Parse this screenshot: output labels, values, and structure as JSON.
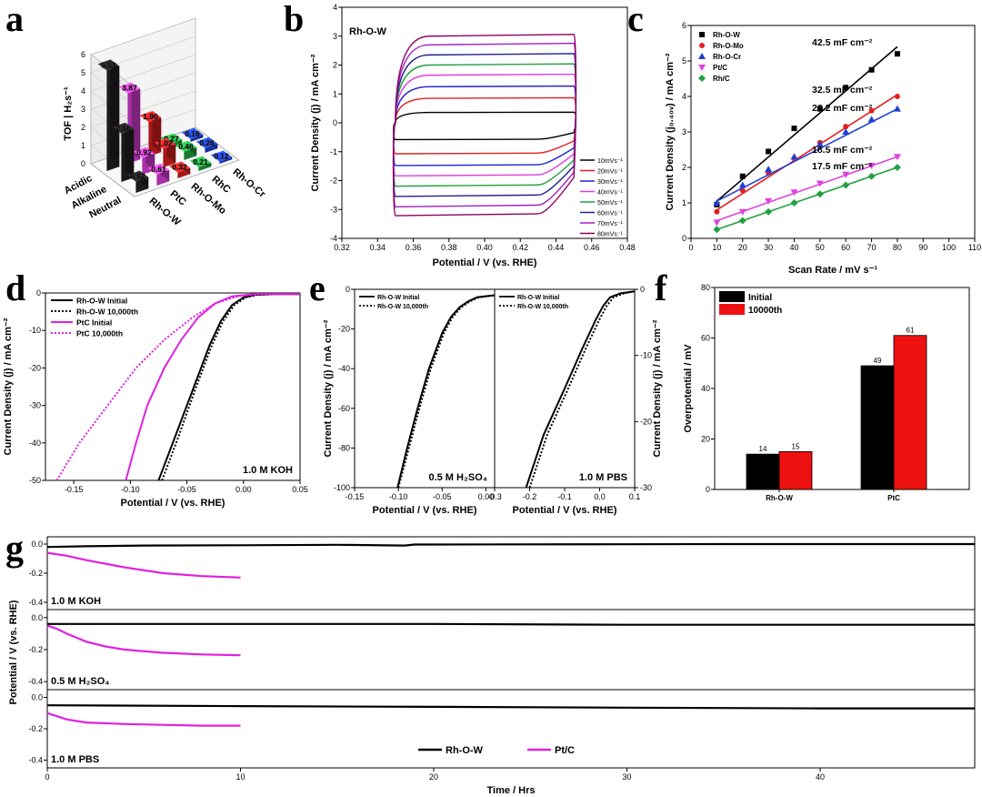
{
  "panel_labels": {
    "a": "a",
    "b": "b",
    "c": "c",
    "d": "d",
    "e": "e",
    "f": "f",
    "g": "g"
  },
  "chart_data": [
    {
      "id": "a",
      "type": "bar",
      "ylabel": "TOF | H₂s⁻¹",
      "yticks": [
        "0",
        "1",
        "2",
        "3",
        "4",
        "5",
        "6"
      ],
      "rows": [
        "Acidic",
        "Alkaline",
        "Neutral"
      ],
      "catalysts": [
        "Rh-O-W",
        "PtC",
        "Rh-O-Mo",
        "RhC",
        "Rh-O-Cr"
      ],
      "colors": {
        "Rh-O-W": "#222222",
        "PtC": "#e040e0",
        "Rh-O-Mo": "#e02020",
        "RhC": "#20a040",
        "Rh-O-Cr": "#2040d0"
      },
      "bars": [
        {
          "row": "Acidic",
          "catalyst": "Rh-O-Cr",
          "value": 0.16,
          "label": "0.16"
        },
        {
          "row": "Acidic",
          "catalyst": "RhC",
          "value": 0.27,
          "label": "0.27"
        },
        {
          "row": "Acidic",
          "catalyst": "Rh-O-Mo",
          "value": 1.9,
          "label": "1.90"
        },
        {
          "row": "Acidic",
          "catalyst": "PtC",
          "value": 3.87,
          "label": "3.87"
        },
        {
          "row": "Acidic",
          "catalyst": "Rh-O-W",
          "value": 5.53,
          "label": "5.53"
        },
        {
          "row": "Alkaline",
          "catalyst": "Rh-O-Cr",
          "value": 0.26,
          "label": "0.26"
        },
        {
          "row": "Alkaline",
          "catalyst": "RhC",
          "value": 0.46,
          "label": "0.46"
        },
        {
          "row": "Alkaline",
          "catalyst": "Rh-O-Mo",
          "value": 1.02,
          "label": "1.02"
        },
        {
          "row": "Alkaline",
          "catalyst": "PtC",
          "value": 0.92,
          "label": "0.92"
        },
        {
          "row": "Alkaline",
          "catalyst": "Rh-O-W",
          "value": 2.66,
          "label": "2.66"
        },
        {
          "row": "Neutral",
          "catalyst": "Rh-O-Cr",
          "value": 0.12,
          "label": "0.12"
        },
        {
          "row": "Neutral",
          "catalyst": "RhC",
          "value": 0.21,
          "label": "0.21"
        },
        {
          "row": "Neutral",
          "catalyst": "Rh-O-Mo",
          "value": 0.32,
          "label": "0.32"
        },
        {
          "row": "Neutral",
          "catalyst": "PtC",
          "value": 0.61,
          "label": "0.61"
        },
        {
          "row": "Neutral",
          "catalyst": "Rh-O-W",
          "value": 0.62,
          "label": "0.62"
        }
      ]
    },
    {
      "id": "b",
      "type": "line",
      "inset_title": "Rh-O-W",
      "xlabel": "Potential / V (vs. RHE)",
      "ylabel": "Current Density (j) / mA cm⁻²",
      "xlim": [
        0.32,
        0.48
      ],
      "ylim": [
        -4,
        4
      ],
      "xticks": [
        "0.32",
        "0.34",
        "0.36",
        "0.38",
        "0.40",
        "0.42",
        "0.44",
        "0.46",
        "0.48"
      ],
      "yticks": [
        "-4",
        "-3",
        "-2",
        "-1",
        "0",
        "1",
        "2",
        "3",
        "4"
      ],
      "x_range": [
        0.35,
        0.45
      ],
      "series": [
        {
          "name": "10mVs⁻¹",
          "color": "#000000",
          "upper": 0.36,
          "lower": -0.57
        },
        {
          "name": "20mVs⁻¹",
          "color": "#e02020",
          "upper": 0.85,
          "lower": -1.05
        },
        {
          "name": "30mVs⁻¹",
          "color": "#2020d0",
          "upper": 1.25,
          "lower": -1.45
        },
        {
          "name": "40mVs⁻¹",
          "color": "#e040e0",
          "upper": 1.65,
          "lower": -1.8
        },
        {
          "name": "50mVs⁻¹",
          "color": "#20a040",
          "upper": 2.0,
          "lower": -2.15
        },
        {
          "name": "60mVs⁻¹",
          "color": "#202090",
          "upper": 2.35,
          "lower": -2.5
        },
        {
          "name": "70mVs⁻¹",
          "color": "#a020c0",
          "upper": 2.7,
          "lower": -2.85
        },
        {
          "name": "80mVs⁻¹",
          "color": "#900060",
          "upper": 3.0,
          "lower": -3.15
        }
      ]
    },
    {
      "id": "c",
      "type": "scatter",
      "xlabel": "Scan Rate / mV s⁻¹",
      "ylabel": "Current Density (j₀.₄₀ᵥ) / mA cm⁻²",
      "xlim": [
        0,
        110
      ],
      "ylim": [
        0,
        6
      ],
      "xticks": [
        "0",
        "10",
        "20",
        "30",
        "40",
        "50",
        "60",
        "70",
        "80",
        "90",
        "100",
        "110"
      ],
      "yticks": [
        "0",
        "1",
        "2",
        "3",
        "4",
        "5",
        "6"
      ],
      "x": [
        10,
        20,
        30,
        40,
        50,
        60,
        70,
        80
      ],
      "series": [
        {
          "name": "Rh-O-W",
          "color": "#000000",
          "marker": "square",
          "values": [
            0.95,
            1.75,
            2.45,
            3.1,
            3.65,
            4.25,
            4.75,
            5.2
          ],
          "fit": [
            1.05,
            5.4
          ],
          "annotation": "42.5 mF cm⁻²"
        },
        {
          "name": "Rh-O-Mo",
          "color": "#e02020",
          "marker": "circle",
          "values": [
            0.75,
            1.35,
            1.85,
            2.25,
            2.7,
            3.15,
            3.6,
            4.0
          ],
          "fit": [
            0.8,
            4.05
          ],
          "annotation": "32.5 mF cm⁻²"
        },
        {
          "name": "Rh-O-Cr",
          "color": "#2040d0",
          "marker": "triangle-up",
          "values": [
            1.0,
            1.5,
            1.95,
            2.3,
            2.65,
            3.0,
            3.35,
            3.65
          ],
          "fit": [
            1.05,
            3.65
          ],
          "annotation": "26.2 mF cm⁻²"
        },
        {
          "name": "Pt/C",
          "color": "#e040e0",
          "marker": "triangle-down",
          "values": [
            0.45,
            0.75,
            1.05,
            1.3,
            1.55,
            1.8,
            2.05,
            2.3
          ],
          "fit": [
            0.5,
            2.3
          ],
          "annotation": "18.5 mF cm⁻²"
        },
        {
          "name": "Rh/C",
          "color": "#20a040",
          "marker": "diamond",
          "values": [
            0.25,
            0.5,
            0.75,
            1.0,
            1.25,
            1.5,
            1.75,
            2.0
          ],
          "fit": [
            0.25,
            2.0
          ],
          "annotation": "17.5 mF cm⁻²"
        }
      ]
    },
    {
      "id": "d",
      "type": "line",
      "xlabel": "Potential / V (vs. RHE)",
      "ylabel": "Current Density (j) / mA cm⁻²",
      "annotation": "1.0 M KOH",
      "xlim": [
        -0.175,
        0.05
      ],
      "ylim": [
        -50,
        0
      ],
      "xticks": [
        "-0.15",
        "-0.10",
        "-0.05",
        "0.00",
        "0.05"
      ],
      "ytick_values": [
        0,
        -10,
        -20,
        -30,
        -40,
        -50
      ],
      "yticks": [
        "0",
        "-10",
        "-20",
        "-30",
        "-40",
        "-50"
      ],
      "series": [
        {
          "name": "Rh-O-W Initial",
          "color": "#000000",
          "dash": "none",
          "x": [
            -0.075,
            -0.06,
            -0.045,
            -0.03,
            -0.02,
            -0.01,
            0.0,
            0.01,
            0.03,
            0.05
          ],
          "y": [
            -50,
            -38,
            -26,
            -14,
            -7.5,
            -3.2,
            -1.2,
            -0.5,
            -0.3,
            -0.3
          ]
        },
        {
          "name": "Rh-O-W 10,000th",
          "color": "#000000",
          "dash": "2,2",
          "x": [
            -0.072,
            -0.057,
            -0.043,
            -0.028,
            -0.018,
            -0.008,
            0.002,
            0.012,
            0.03,
            0.05
          ],
          "y": [
            -50,
            -38,
            -26,
            -14,
            -7.5,
            -3.2,
            -1.2,
            -0.5,
            -0.3,
            -0.3
          ]
        },
        {
          "name": "PtC Initial",
          "color": "#e020e0",
          "dash": "none",
          "x": [
            -0.104,
            -0.095,
            -0.085,
            -0.07,
            -0.055,
            -0.04,
            -0.025,
            -0.01,
            0.01,
            0.05
          ],
          "y": [
            -50,
            -40,
            -30,
            -20,
            -12.5,
            -6.5,
            -2.8,
            -0.9,
            -0.3,
            -0.3
          ]
        },
        {
          "name": "PtC 10,000th",
          "color": "#e020e0",
          "dash": "2,2",
          "x": [
            -0.165,
            -0.145,
            -0.12,
            -0.095,
            -0.07,
            -0.045,
            -0.025,
            -0.005,
            0.015,
            0.05
          ],
          "y": [
            -50,
            -40,
            -30,
            -20,
            -12.5,
            -6.5,
            -2.8,
            -0.9,
            -0.3,
            -0.3
          ]
        }
      ]
    },
    {
      "id": "e",
      "type": "line",
      "ylabel": "Current Density (j) / mA cm⁻²",
      "subplots": [
        {
          "xlabel": "Potential / V (vs. RHE)",
          "annotation": "0.5 M H₂SO₄",
          "xlim": [
            -0.15,
            0.01
          ],
          "ylim": [
            -100,
            0
          ],
          "xticks": [
            "-0.15",
            "-0.10",
            "-0.05",
            "0.00"
          ],
          "ytick_values": [
            0,
            -20,
            -40,
            -60,
            -80,
            -100
          ],
          "yticks": [
            "0",
            "-20",
            "-40",
            "-60",
            "-80",
            "-100"
          ],
          "legend": [
            "Rh-O-W Initial",
            "Rh-O-W 10,000th"
          ],
          "series": [
            {
              "name": "Rh-O-W Initial",
              "color": "#000000",
              "dash": "none",
              "x": [
                -0.101,
                -0.09,
                -0.078,
                -0.065,
                -0.05,
                -0.04,
                -0.03,
                -0.02,
                -0.01,
                0.01
              ],
              "y": [
                -100,
                -80,
                -60,
                -40,
                -22,
                -14,
                -9,
                -6,
                -4,
                -3
              ]
            },
            {
              "name": "Rh-O-W 10,000th",
              "color": "#000000",
              "dash": "2,2",
              "x": [
                -0.1,
                -0.088,
                -0.076,
                -0.063,
                -0.048,
                -0.038,
                -0.028,
                -0.018,
                -0.008,
                0.01
              ],
              "y": [
                -100,
                -80,
                -60,
                -40,
                -22,
                -14,
                -9,
                -6,
                -4,
                -3
              ]
            }
          ]
        },
        {
          "xlabel": "Potential / V (vs. RHE)",
          "annotation": "1.0 M PBS",
          "xlim": [
            -0.3,
            0.1
          ],
          "ylim": [
            -30,
            0
          ],
          "xticks": [
            "-0.3",
            "-0.2",
            "-0.1",
            "0.0",
            "0.1"
          ],
          "ytick_values": [
            0,
            -10,
            -20,
            -30
          ],
          "yticks": [
            "0",
            "-10",
            "-20",
            "-30"
          ],
          "legend": [
            "Rh-O-W Initial",
            "Rh-O-W 10,000th"
          ],
          "series": [
            {
              "name": "Rh-O-W Initial",
              "color": "#000000",
              "dash": "none",
              "x": [
                -0.21,
                -0.16,
                -0.1,
                -0.05,
                -0.01,
                0.01,
                0.03,
                0.06,
                0.1
              ],
              "y": [
                -30,
                -22,
                -15,
                -9,
                -4.5,
                -2.5,
                -1.2,
                -0.6,
                -0.3
              ]
            },
            {
              "name": "Rh-O-W 10,000th",
              "color": "#000000",
              "dash": "2,2",
              "x": [
                -0.2,
                -0.15,
                -0.09,
                -0.04,
                0.0,
                0.02,
                0.04,
                0.07,
                0.1
              ],
              "y": [
                -30,
                -22,
                -15,
                -9,
                -4.5,
                -2.5,
                -1.2,
                -0.6,
                -0.3
              ]
            }
          ]
        }
      ]
    },
    {
      "id": "f",
      "type": "bar",
      "ylabel": "Overpotential / mV",
      "ylim": [
        0,
        80
      ],
      "yticks": [
        "0",
        "20",
        "40",
        "60",
        "80"
      ],
      "categories": [
        "Rh-O-W",
        "PtC"
      ],
      "series": [
        {
          "name": "Initial",
          "color": "#000000",
          "values": [
            14,
            49
          ],
          "labels": [
            "14",
            "49"
          ]
        },
        {
          "name": "10000th",
          "color": "#ee1111",
          "values": [
            15,
            61
          ],
          "labels": [
            "15",
            "61"
          ]
        }
      ]
    },
    {
      "id": "g",
      "type": "line",
      "xlabel": "Time / Hrs",
      "ylabel": "Potential / V (vs. RHE)",
      "xlim": [
        0,
        48
      ],
      "xticks": [
        "0",
        "10",
        "20",
        "30",
        "40"
      ],
      "legend": [
        "Rh-O-W",
        "Pt/C"
      ],
      "subplots": [
        {
          "annotation": "1.0 M KOH",
          "ylim": [
            -0.45,
            0.05
          ],
          "ytick_values": [
            0,
            -0.2,
            -0.4
          ],
          "yticks": [
            "0.0",
            "-0.2",
            "-0.4"
          ],
          "series": [
            {
              "name": "Rh-O-W",
              "color": "#000000",
              "x": [
                0,
                2,
                5,
                10,
                15,
                18.5,
                19,
                20,
                25,
                30,
                35,
                40,
                48
              ],
              "y": [
                -0.02,
                -0.015,
                -0.01,
                -0.008,
                -0.005,
                -0.01,
                -0.003,
                -0.003,
                -0.002,
                -0.001,
                0.0,
                0.0,
                0.0
              ]
            },
            {
              "name": "Pt/C",
              "color": "#e020e0",
              "x": [
                0,
                1,
                2,
                4,
                6,
                8,
                10
              ],
              "y": [
                -0.06,
                -0.08,
                -0.11,
                -0.16,
                -0.2,
                -0.22,
                -0.23
              ]
            }
          ]
        },
        {
          "annotation": "0.5 M H₂SO₄",
          "ylim": [
            -0.45,
            0.05
          ],
          "ytick_values": [
            0,
            -0.2,
            -0.4
          ],
          "yticks": [
            "0.0",
            "-0.2",
            "-0.4"
          ],
          "series": [
            {
              "name": "Rh-O-W",
              "color": "#000000",
              "x": [
                0,
                10,
                20,
                30,
                40,
                48
              ],
              "y": [
                -0.04,
                -0.04,
                -0.04,
                -0.045,
                -0.045,
                -0.045
              ]
            },
            {
              "name": "Pt/C",
              "color": "#e020e0",
              "x": [
                0,
                0.5,
                1,
                2,
                3,
                4,
                5,
                6,
                8,
                10
              ],
              "y": [
                -0.05,
                -0.07,
                -0.1,
                -0.15,
                -0.18,
                -0.2,
                -0.21,
                -0.22,
                -0.23,
                -0.235
              ]
            }
          ]
        },
        {
          "annotation": "1.0 M PBS",
          "ylim": [
            -0.45,
            0.05
          ],
          "ytick_values": [
            0,
            -0.2,
            -0.4
          ],
          "yticks": [
            "0.0",
            "-0.2",
            "-0.4"
          ],
          "series": [
            {
              "name": "Rh-O-W",
              "color": "#000000",
              "x": [
                0,
                10,
                20,
                30,
                40,
                48
              ],
              "y": [
                -0.05,
                -0.055,
                -0.06,
                -0.065,
                -0.07,
                -0.07
              ]
            },
            {
              "name": "Pt/C",
              "color": "#e020e0",
              "x": [
                0,
                0.5,
                1,
                2,
                4,
                6,
                8,
                10
              ],
              "y": [
                -0.1,
                -0.12,
                -0.14,
                -0.16,
                -0.17,
                -0.175,
                -0.18,
                -0.18
              ]
            }
          ]
        }
      ]
    }
  ]
}
